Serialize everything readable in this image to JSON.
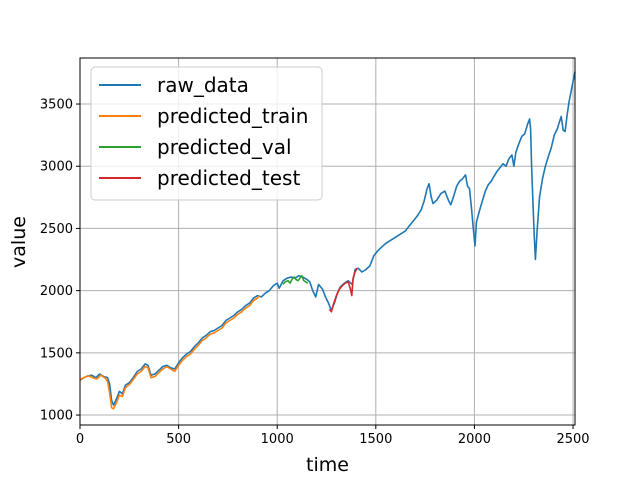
{
  "chart_data": {
    "type": "line",
    "xlabel": "time",
    "ylabel": "value",
    "xlim": [
      0,
      2510
    ],
    "ylim": [
      920,
      3870
    ],
    "x_ticks": [
      0,
      500,
      1000,
      1500,
      2000,
      2500
    ],
    "x_tick_labels": [
      "0",
      "500",
      "1000",
      "1500",
      "2000",
      "2500"
    ],
    "y_ticks": [
      1000,
      1500,
      2000,
      2500,
      3000,
      3500
    ],
    "y_tick_labels": [
      "1000",
      "1500",
      "2000",
      "2500",
      "3000",
      "3500"
    ],
    "grid": true,
    "legend_position": "top-left",
    "series": [
      {
        "name": "raw_data",
        "color": "#1f77b4",
        "points": [
          [
            0,
            1280
          ],
          [
            20,
            1300
          ],
          [
            40,
            1315
          ],
          [
            60,
            1320
          ],
          [
            80,
            1300
          ],
          [
            100,
            1330
          ],
          [
            120,
            1310
          ],
          [
            140,
            1300
          ],
          [
            150,
            1250
          ],
          [
            160,
            1120
          ],
          [
            170,
            1080
          ],
          [
            185,
            1130
          ],
          [
            200,
            1190
          ],
          [
            215,
            1170
          ],
          [
            230,
            1240
          ],
          [
            250,
            1260
          ],
          [
            270,
            1300
          ],
          [
            290,
            1350
          ],
          [
            310,
            1370
          ],
          [
            330,
            1410
          ],
          [
            345,
            1400
          ],
          [
            360,
            1320
          ],
          [
            380,
            1330
          ],
          [
            400,
            1360
          ],
          [
            420,
            1390
          ],
          [
            440,
            1400
          ],
          [
            460,
            1380
          ],
          [
            480,
            1370
          ],
          [
            500,
            1420
          ],
          [
            520,
            1460
          ],
          [
            540,
            1490
          ],
          [
            560,
            1510
          ],
          [
            580,
            1550
          ],
          [
            600,
            1580
          ],
          [
            620,
            1620
          ],
          [
            640,
            1640
          ],
          [
            660,
            1670
          ],
          [
            680,
            1680
          ],
          [
            700,
            1700
          ],
          [
            720,
            1720
          ],
          [
            740,
            1760
          ],
          [
            760,
            1780
          ],
          [
            780,
            1800
          ],
          [
            800,
            1830
          ],
          [
            820,
            1850
          ],
          [
            840,
            1880
          ],
          [
            860,
            1900
          ],
          [
            880,
            1940
          ],
          [
            900,
            1960
          ],
          [
            920,
            1950
          ],
          [
            940,
            1980
          ],
          [
            960,
            2000
          ],
          [
            980,
            2040
          ],
          [
            1000,
            2060
          ],
          [
            1010,
            2020
          ],
          [
            1030,
            2080
          ],
          [
            1050,
            2100
          ],
          [
            1070,
            2110
          ],
          [
            1090,
            2100
          ],
          [
            1110,
            2120
          ],
          [
            1130,
            2110
          ],
          [
            1150,
            2090
          ],
          [
            1165,
            2070
          ],
          [
            1180,
            2000
          ],
          [
            1195,
            1950
          ],
          [
            1210,
            2050
          ],
          [
            1230,
            2010
          ],
          [
            1245,
            1950
          ],
          [
            1260,
            1900
          ],
          [
            1275,
            1840
          ],
          [
            1290,
            1900
          ],
          [
            1305,
            1980
          ],
          [
            1320,
            2030
          ],
          [
            1340,
            2060
          ],
          [
            1360,
            2080
          ],
          [
            1380,
            2050
          ],
          [
            1395,
            2170
          ],
          [
            1410,
            2180
          ],
          [
            1430,
            2150
          ],
          [
            1450,
            2170
          ],
          [
            1470,
            2200
          ],
          [
            1490,
            2280
          ],
          [
            1510,
            2320
          ],
          [
            1530,
            2350
          ],
          [
            1550,
            2380
          ],
          [
            1570,
            2400
          ],
          [
            1590,
            2420
          ],
          [
            1610,
            2440
          ],
          [
            1630,
            2460
          ],
          [
            1650,
            2480
          ],
          [
            1670,
            2520
          ],
          [
            1690,
            2560
          ],
          [
            1710,
            2600
          ],
          [
            1730,
            2650
          ],
          [
            1745,
            2720
          ],
          [
            1760,
            2820
          ],
          [
            1770,
            2860
          ],
          [
            1780,
            2760
          ],
          [
            1790,
            2700
          ],
          [
            1810,
            2730
          ],
          [
            1830,
            2780
          ],
          [
            1850,
            2800
          ],
          [
            1870,
            2720
          ],
          [
            1880,
            2690
          ],
          [
            1895,
            2760
          ],
          [
            1910,
            2840
          ],
          [
            1925,
            2880
          ],
          [
            1940,
            2900
          ],
          [
            1955,
            2930
          ],
          [
            1965,
            2840
          ],
          [
            1975,
            2820
          ],
          [
            1985,
            2660
          ],
          [
            1995,
            2490
          ],
          [
            2003,
            2360
          ],
          [
            2010,
            2550
          ],
          [
            2025,
            2640
          ],
          [
            2040,
            2720
          ],
          [
            2055,
            2800
          ],
          [
            2070,
            2850
          ],
          [
            2085,
            2880
          ],
          [
            2100,
            2920
          ],
          [
            2115,
            2960
          ],
          [
            2130,
            2990
          ],
          [
            2145,
            3020
          ],
          [
            2160,
            3000
          ],
          [
            2175,
            3060
          ],
          [
            2190,
            3090
          ],
          [
            2200,
            3000
          ],
          [
            2210,
            3110
          ],
          [
            2225,
            3180
          ],
          [
            2240,
            3240
          ],
          [
            2255,
            3260
          ],
          [
            2270,
            3340
          ],
          [
            2280,
            3380
          ],
          [
            2285,
            3300
          ],
          [
            2290,
            3000
          ],
          [
            2297,
            2700
          ],
          [
            2303,
            2450
          ],
          [
            2309,
            2250
          ],
          [
            2318,
            2480
          ],
          [
            2330,
            2750
          ],
          [
            2345,
            2900
          ],
          [
            2360,
            3000
          ],
          [
            2375,
            3080
          ],
          [
            2390,
            3150
          ],
          [
            2405,
            3250
          ],
          [
            2420,
            3300
          ],
          [
            2430,
            3350
          ],
          [
            2440,
            3400
          ],
          [
            2450,
            3290
          ],
          [
            2460,
            3280
          ],
          [
            2470,
            3410
          ],
          [
            2480,
            3520
          ],
          [
            2490,
            3600
          ],
          [
            2500,
            3680
          ],
          [
            2510,
            3760
          ]
        ]
      },
      {
        "name": "predicted_train",
        "color": "#ff7f0e",
        "points": [
          [
            0,
            1285
          ],
          [
            25,
            1305
          ],
          [
            45,
            1315
          ],
          [
            65,
            1300
          ],
          [
            85,
            1290
          ],
          [
            105,
            1320
          ],
          [
            125,
            1300
          ],
          [
            140,
            1270
          ],
          [
            150,
            1180
          ],
          [
            160,
            1060
          ],
          [
            170,
            1050
          ],
          [
            185,
            1100
          ],
          [
            200,
            1160
          ],
          [
            215,
            1150
          ],
          [
            230,
            1220
          ],
          [
            250,
            1245
          ],
          [
            270,
            1285
          ],
          [
            290,
            1330
          ],
          [
            310,
            1350
          ],
          [
            330,
            1390
          ],
          [
            345,
            1380
          ],
          [
            360,
            1300
          ],
          [
            380,
            1310
          ],
          [
            400,
            1340
          ],
          [
            420,
            1370
          ],
          [
            440,
            1390
          ],
          [
            460,
            1370
          ],
          [
            480,
            1350
          ],
          [
            500,
            1400
          ],
          [
            520,
            1440
          ],
          [
            540,
            1470
          ],
          [
            560,
            1490
          ],
          [
            580,
            1530
          ],
          [
            600,
            1560
          ],
          [
            620,
            1600
          ],
          [
            640,
            1620
          ],
          [
            660,
            1650
          ],
          [
            680,
            1660
          ],
          [
            700,
            1680
          ],
          [
            720,
            1700
          ],
          [
            740,
            1740
          ],
          [
            760,
            1760
          ],
          [
            780,
            1780
          ],
          [
            800,
            1810
          ],
          [
            820,
            1830
          ],
          [
            840,
            1860
          ],
          [
            860,
            1880
          ],
          [
            880,
            1920
          ],
          [
            900,
            1940
          ],
          [
            910,
            1960
          ]
        ]
      },
      {
        "name": "predicted_val",
        "color": "#2ca02c",
        "points": [
          [
            1030,
            2050
          ],
          [
            1040,
            2070
          ],
          [
            1055,
            2080
          ],
          [
            1065,
            2060
          ],
          [
            1075,
            2090
          ],
          [
            1085,
            2110
          ],
          [
            1095,
            2090
          ],
          [
            1105,
            2080
          ],
          [
            1115,
            2100
          ],
          [
            1125,
            2120
          ],
          [
            1135,
            2080
          ],
          [
            1145,
            2070
          ],
          [
            1155,
            2060
          ]
        ]
      },
      {
        "name": "predicted_test",
        "color": "#d62728",
        "points": [
          [
            1265,
            1850
          ],
          [
            1275,
            1830
          ],
          [
            1285,
            1890
          ],
          [
            1300,
            1960
          ],
          [
            1315,
            2010
          ],
          [
            1330,
            2040
          ],
          [
            1345,
            2060
          ],
          [
            1360,
            2070
          ],
          [
            1370,
            2020
          ],
          [
            1378,
            1960
          ],
          [
            1385,
            2100
          ],
          [
            1395,
            2150
          ],
          [
            1405,
            2180
          ]
        ]
      }
    ]
  }
}
